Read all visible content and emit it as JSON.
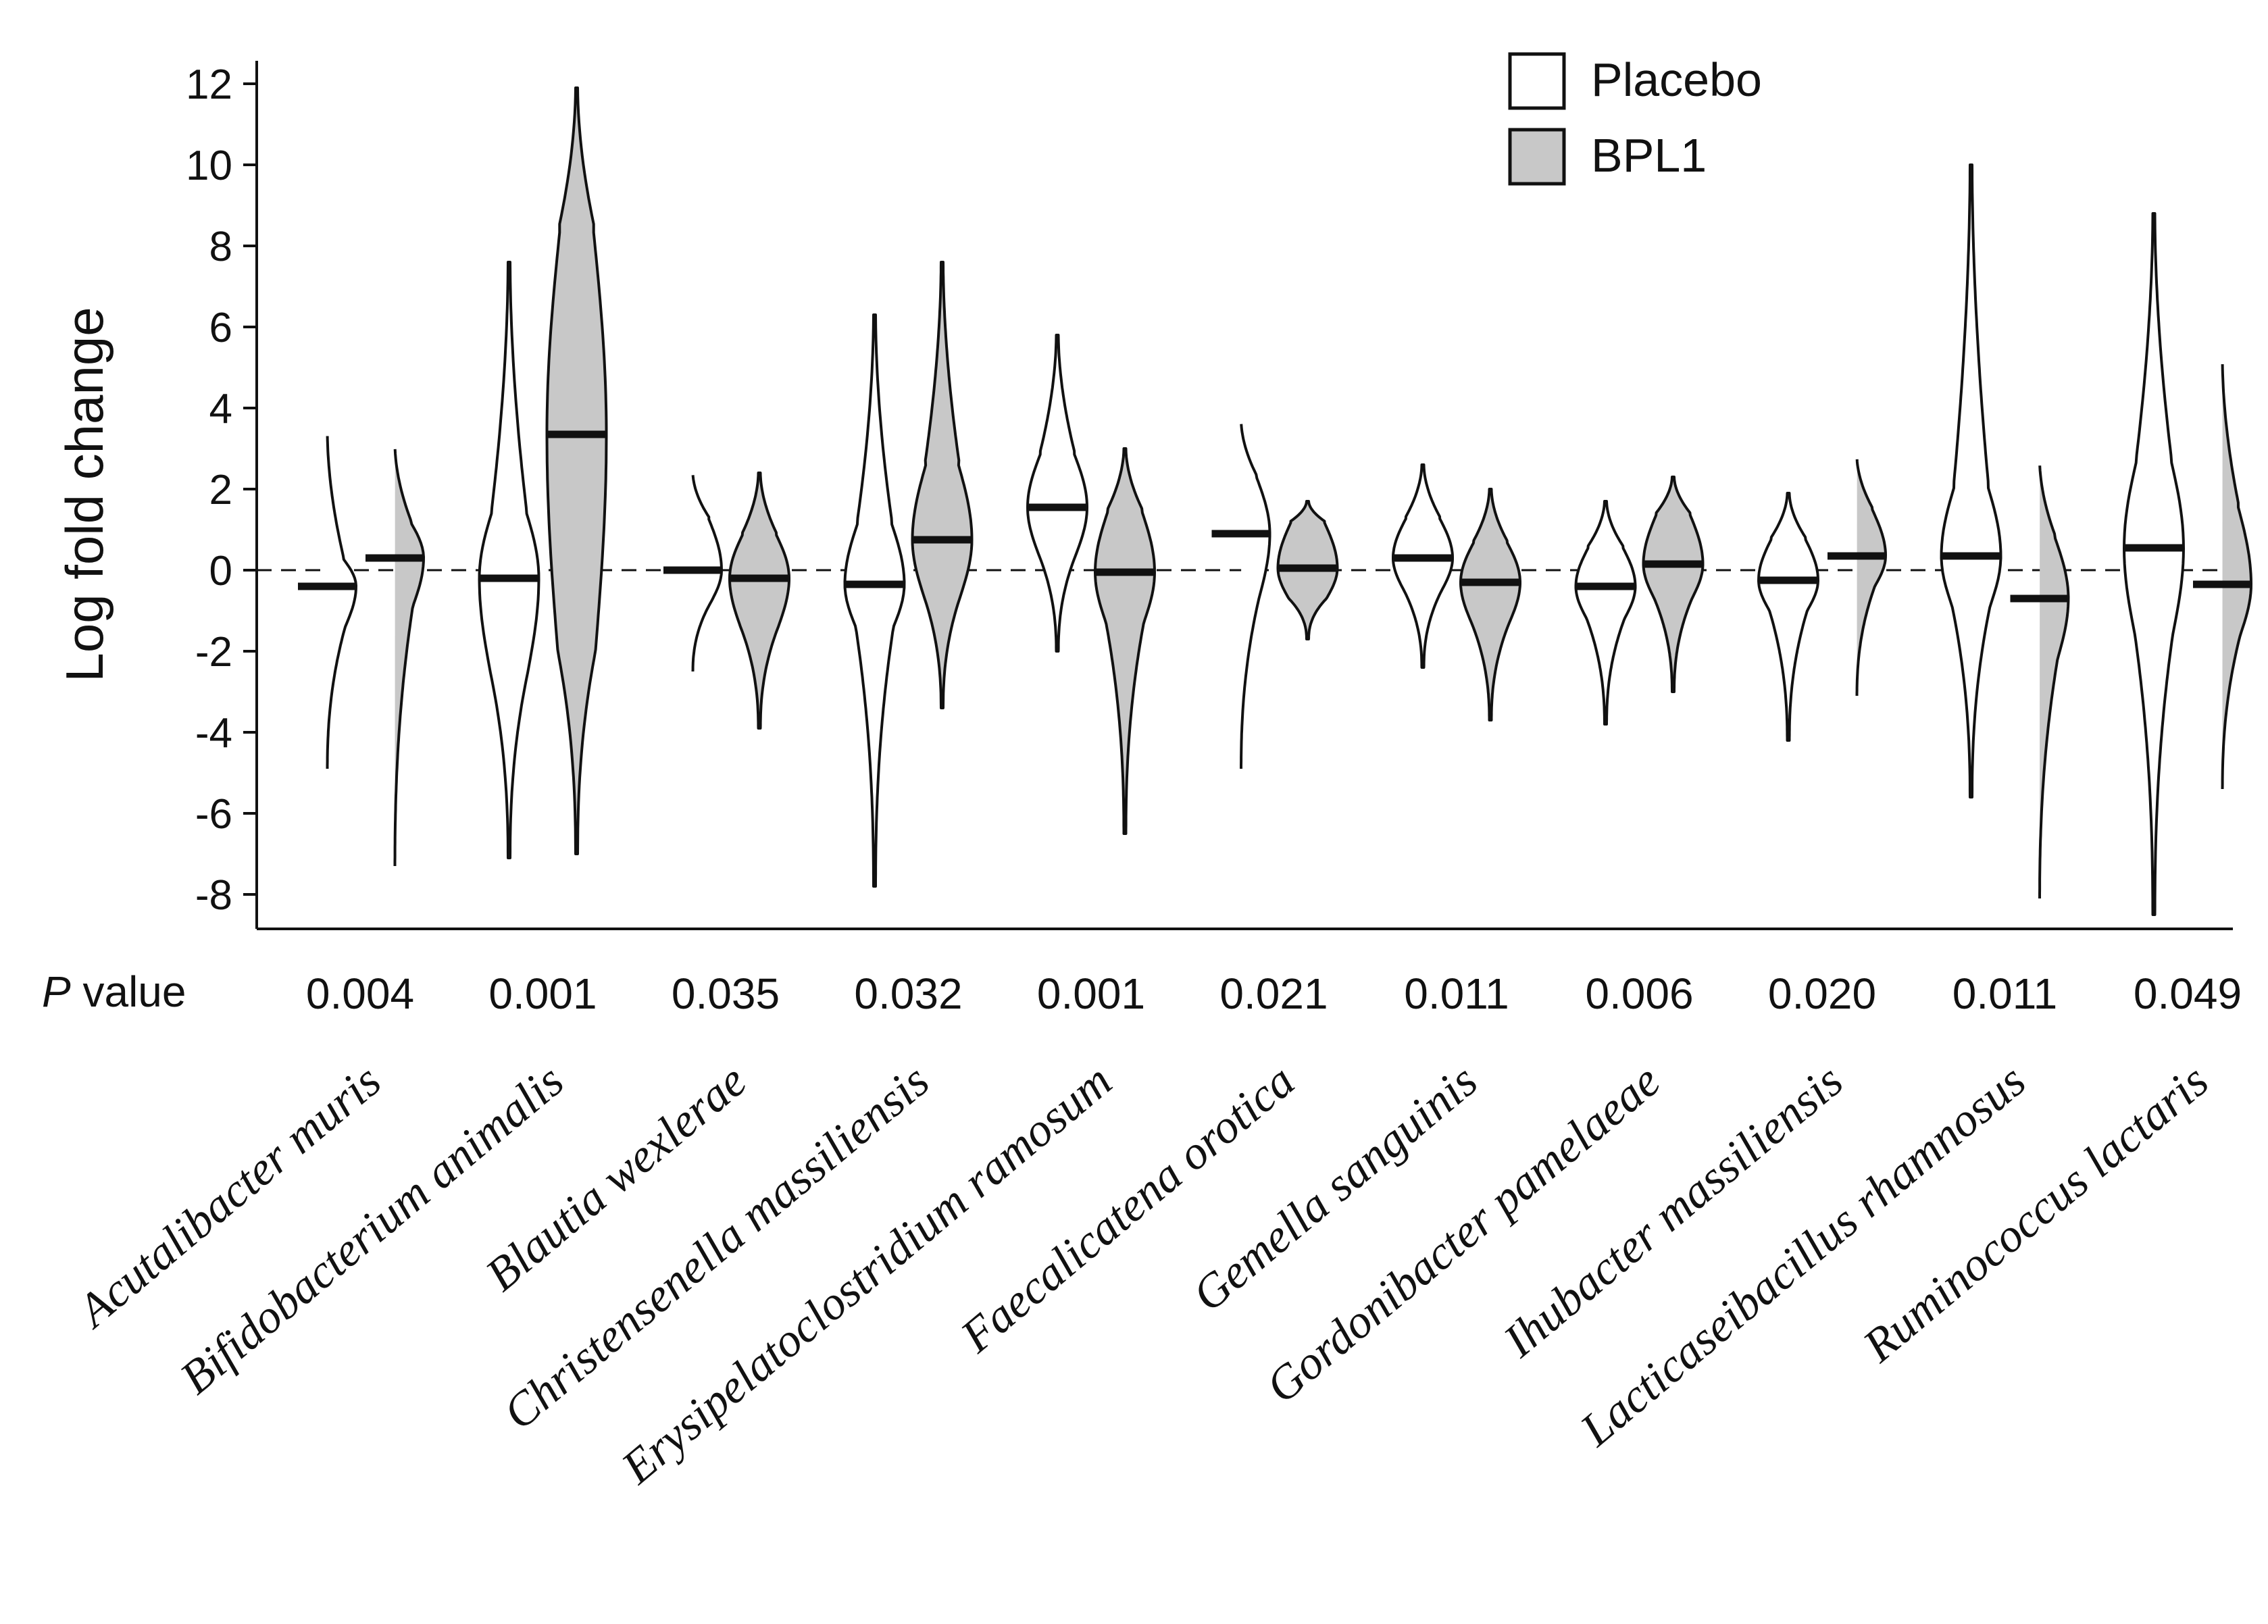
{
  "chart_data": {
    "type": "violin",
    "ylabel": "Log fold change",
    "ylim": [
      -9,
      12.5
    ],
    "yticks": [
      12,
      10,
      8,
      6,
      4,
      2,
      0,
      -2,
      -4,
      -6,
      -8
    ],
    "reference_line": 0,
    "legend": {
      "position": "top-right",
      "entries": [
        {
          "name": "Placebo",
          "fill": "#ffffff"
        },
        {
          "name": "BPL1",
          "fill": "#c8c8c8"
        }
      ]
    },
    "pvalue_title": "value",
    "pvalue_title_italic": "P",
    "categories": [
      "Acutalibacter muris",
      "Bifidobacterium animalis",
      "Blautia wexlerae",
      "Christensenella massiliensis",
      "Erysipelatoclostridium ramosum",
      "Faecalicatena orotica",
      "Gemella sanguinis",
      "Gordonibacter pamelaeae",
      "Ihubacter massiliensis",
      "Lacticaseibacillus rhamnosus",
      "Ruminococcus lactaris"
    ],
    "p_values": [
      "0.004",
      "0.001",
      "0.035",
      "0.032",
      "0.001",
      "0.021",
      "0.011",
      "0.006",
      "0.020",
      "0.011",
      "0.049"
    ],
    "series": [
      {
        "name": "Placebo",
        "color": "#ffffff",
        "median": [
          -0.4,
          -0.2,
          0.0,
          -0.35,
          1.55,
          0.9,
          0.3,
          -0.4,
          -0.25,
          0.35,
          0.55
        ],
        "min": [
          -4.9,
          -7.1,
          -2.5,
          -7.8,
          -2.0,
          -4.9,
          -2.4,
          -3.8,
          -4.2,
          -5.6,
          -8.5
        ],
        "max": [
          3.4,
          7.6,
          2.4,
          6.3,
          5.8,
          3.7,
          2.6,
          1.7,
          1.9,
          10.0,
          8.8
        ],
        "q1": [
          -1.4,
          -2.5,
          -0.8,
          -1.4,
          0.4,
          -0.7,
          -0.5,
          -1.2,
          -1.0,
          -0.9,
          -1.6
        ],
        "q3": [
          0.3,
          1.5,
          1.3,
          1.2,
          2.9,
          2.3,
          1.3,
          0.6,
          0.8,
          2.1,
          2.8
        ]
      },
      {
        "name": "BPL1",
        "color": "#c8c8c8",
        "median": [
          0.3,
          3.35,
          -0.2,
          0.75,
          -0.05,
          0.05,
          -0.3,
          0.15,
          0.35,
          -0.7,
          -0.35
        ],
        "min": [
          -7.3,
          -7.0,
          -3.9,
          -3.4,
          -6.5,
          -1.7,
          -3.7,
          -3.0,
          -3.1,
          -8.1,
          -5.4
        ],
        "max": [
          3.1,
          11.9,
          2.4,
          7.6,
          3.0,
          1.7,
          2.0,
          2.3,
          2.8,
          2.7,
          5.2
        ],
        "q1": [
          -0.9,
          -2.0,
          -1.4,
          -0.6,
          -1.3,
          -0.7,
          -1.3,
          -0.7,
          -0.4,
          -2.2,
          -1.6
        ],
        "q3": [
          1.2,
          8.5,
          0.9,
          2.6,
          1.5,
          1.2,
          0.7,
          1.4,
          1.5,
          0.8,
          1.6
        ]
      }
    ]
  }
}
